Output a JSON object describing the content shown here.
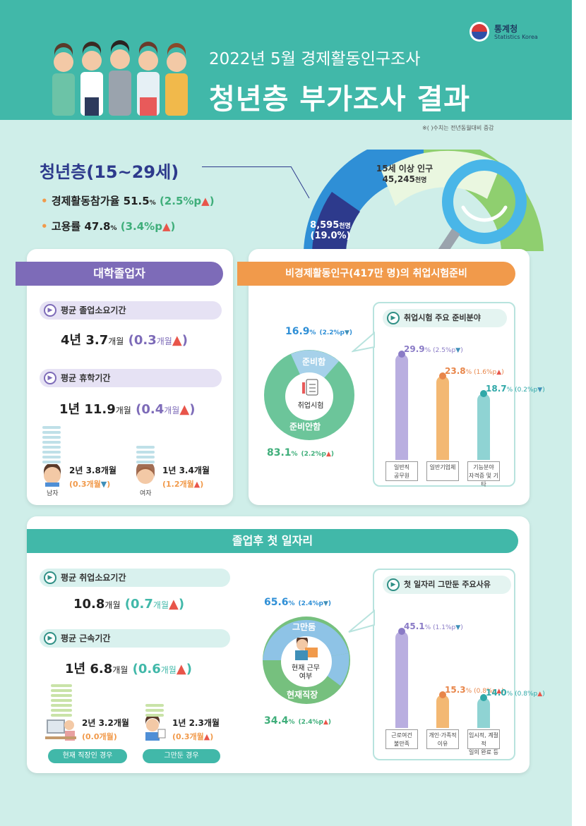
{
  "header": {
    "org_name": "통계청",
    "org_name_en": "Statistics Korea",
    "subtitle": "2022년 5월 경제활동인구조사",
    "title": "청년층 부가조사 결과",
    "note": "※( )수치는 전년동월대비 증감"
  },
  "youth": {
    "title": "청년층(15~29세)",
    "participation_label": "경제활동참가율",
    "participation_value": "51.5",
    "participation_unit": "%",
    "participation_change": "(2.5%p",
    "employment_label": "고용률",
    "employment_value": "47.8",
    "employment_unit": "%",
    "employment_change": "(3.4%p",
    "donut_label": "15세 이상 인구",
    "donut_total": "45,245",
    "donut_total_unit": "천명",
    "youth_pop": "8,595",
    "youth_pop_unit": "천명",
    "youth_share": "(19.0%)"
  },
  "college": {
    "banner": "대학졸업자",
    "grad_period_label": "평균 졸업소요기간",
    "grad_period_value": "4년 3.7",
    "grad_period_unit": "개월",
    "grad_period_change": "(0.3",
    "grad_period_change_unit": "개월",
    "leave_label": "평균 휴학기간",
    "leave_value": "1년 11.9",
    "leave_unit": "개월",
    "leave_change": "(0.4",
    "leave_change_unit": "개월",
    "male_value": "2년 3.8개월",
    "male_change": "(0.3개월",
    "male_label": "남자",
    "female_value": "1년 3.4개월",
    "female_change": "(1.2개월",
    "female_label": "여자"
  },
  "exam": {
    "banner": "비경제활동인구(417만 명)의 취업시험준비",
    "preparing_pct": "16.9",
    "preparing_change": "(2.2%p",
    "preparing_label": "준비함",
    "center_label": "취업시험",
    "not_preparing_label": "준비안함",
    "not_preparing_pct": "83.1",
    "not_preparing_change": "(2.2%p",
    "fields_title": "취업시험 주요 준비분야",
    "fields": [
      {
        "pct": "29.9",
        "change": "(2.5%p",
        "dir": "down",
        "label1": "일반직",
        "label2": "공무원",
        "color": "#b9aee0",
        "value": 29.9
      },
      {
        "pct": "23.8",
        "change": "(1.6%p",
        "dir": "up",
        "label1": "일반기업체",
        "label2": "",
        "color": "#f3b873",
        "value": 23.8
      },
      {
        "pct": "18.7",
        "change": "(0.2%p",
        "dir": "down",
        "label1": "기능분야",
        "label2": "자격증 및 기타",
        "color": "#8fd3d3",
        "value": 18.7
      }
    ]
  },
  "firstjob": {
    "banner": "졸업후 첫 일자리",
    "find_label": "평균 취업소요기간",
    "find_value": "10.8",
    "find_unit": "개월",
    "find_change": "(0.7",
    "find_change_unit": "개월",
    "tenure_label": "평균 근속기간",
    "tenure_value": "1년 6.8",
    "tenure_unit": "개월",
    "tenure_change": "(0.6",
    "tenure_change_unit": "개월",
    "current_value": "2년 3.2개월",
    "current_change": "(0.0개월)",
    "current_label": "현재 직장인 경우",
    "quit_value": "1년 2.3개월",
    "quit_change": "(0.3개월",
    "quit_label": "그만둔 경우",
    "quit_pct": "65.6",
    "quit_pct_change": "(2.4%p",
    "quit_donut_label": "그만둠",
    "center_label1": "현재 근무",
    "center_label2": "여부",
    "stay_donut_label": "현재직장",
    "stay_pct": "34.4",
    "stay_pct_change": "(2.4%p",
    "reasons_title": "첫 일자리 그만둔 주요사유",
    "reasons": [
      {
        "pct": "45.1",
        "change": "(1.1%p",
        "dir": "down",
        "label1": "근로여건",
        "label2": "불만족",
        "color": "#b9aee0",
        "value": 45.1
      },
      {
        "pct": "15.3",
        "change": "(0.8%p",
        "dir": "up",
        "label1": "개인·가족적",
        "label2": "이유",
        "color": "#f3b873",
        "value": 15.3
      },
      {
        "pct": "14.0",
        "change": "(0.8%p",
        "dir": "up",
        "label1": "임시적, 계절적",
        "label2": "일의 완료 등",
        "color": "#8fd3d3",
        "value": 14.0
      }
    ]
  },
  "colors": {
    "teal": "#41b8a9",
    "purple": "#7d6bb8",
    "orange": "#f19a4b",
    "green": "#3fae7a",
    "blue": "#2f8fd6",
    "navy": "#2d3a8c"
  }
}
